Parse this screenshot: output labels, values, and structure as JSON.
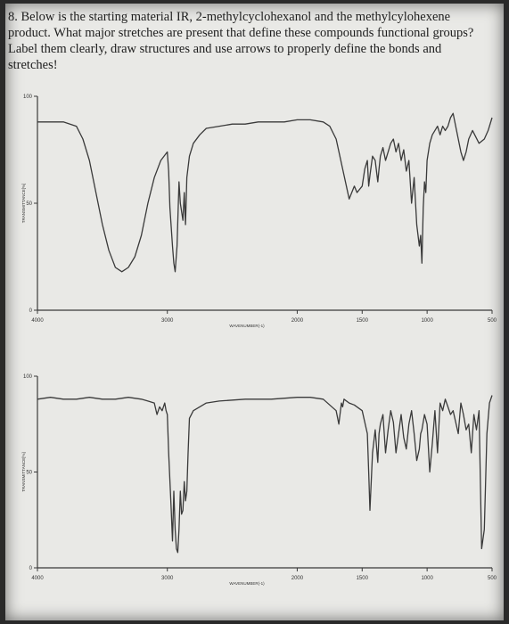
{
  "question": {
    "text": "8. Below is the starting material IR, 2-methylcyclohexanol and the methylcylohexene product. What major stretches are present that define these compounds functional groups? Label them clearly, draw structures and use arrows to properly define the bonds and stretches!"
  },
  "colors": {
    "trace": "#3a3a3a",
    "paper": "#e9e9e6",
    "text": "#1d1d1d"
  },
  "chart_data": [
    {
      "type": "line",
      "title": "",
      "xlabel": "WAVENUMBER(-1)",
      "ylabel": "TRANSMITTANCE[%]",
      "xlim": [
        4000,
        500
      ],
      "ylim": [
        0,
        100
      ],
      "x_reversed": true,
      "x_ticks": [
        4000,
        3000,
        2000,
        1500,
        1000,
        500
      ],
      "y_ticks": [
        0,
        50,
        100
      ],
      "x": [
        4000,
        3900,
        3800,
        3700,
        3650,
        3600,
        3550,
        3500,
        3450,
        3400,
        3350,
        3300,
        3250,
        3200,
        3150,
        3100,
        3050,
        3000,
        2990,
        2980,
        2960,
        2950,
        2940,
        2925,
        2910,
        2900,
        2880,
        2870,
        2860,
        2850,
        2830,
        2800,
        2750,
        2700,
        2600,
        2500,
        2400,
        2300,
        2200,
        2100,
        2000,
        1900,
        1800,
        1750,
        1700,
        1650,
        1600,
        1560,
        1540,
        1500,
        1480,
        1460,
        1450,
        1440,
        1420,
        1400,
        1380,
        1370,
        1360,
        1340,
        1320,
        1300,
        1280,
        1260,
        1240,
        1220,
        1200,
        1180,
        1160,
        1140,
        1120,
        1100,
        1080,
        1060,
        1050,
        1040,
        1030,
        1020,
        1010,
        1000,
        980,
        960,
        940,
        920,
        900,
        880,
        860,
        840,
        820,
        800,
        780,
        760,
        740,
        720,
        700,
        680,
        650,
        600,
        560,
        530,
        500
      ],
      "y": [
        88,
        88,
        88,
        86,
        80,
        70,
        55,
        40,
        28,
        20,
        18,
        20,
        25,
        35,
        50,
        62,
        70,
        74,
        65,
        48,
        30,
        22,
        18,
        30,
        60,
        50,
        42,
        55,
        40,
        62,
        72,
        78,
        82,
        85,
        86,
        87,
        87,
        88,
        88,
        88,
        89,
        89,
        88,
        86,
        80,
        66,
        52,
        58,
        55,
        58,
        66,
        70,
        58,
        63,
        72,
        70,
        60,
        66,
        72,
        76,
        70,
        74,
        78,
        80,
        74,
        78,
        70,
        75,
        65,
        70,
        50,
        62,
        40,
        30,
        35,
        22,
        48,
        60,
        55,
        70,
        78,
        82,
        84,
        86,
        82,
        86,
        84,
        86,
        90,
        92,
        86,
        80,
        74,
        70,
        74,
        80,
        84,
        78,
        80,
        84,
        90
      ]
    },
    {
      "type": "line",
      "title": "",
      "xlabel": "WAVENUMBER(-1)",
      "ylabel": "TRANSMITTANCE[%]",
      "xlim": [
        4000,
        500
      ],
      "ylim": [
        0,
        100
      ],
      "x_reversed": true,
      "x_ticks": [
        4000,
        3000,
        2000,
        1500,
        1000,
        500
      ],
      "y_ticks": [
        0,
        50,
        100
      ],
      "x": [
        4000,
        3900,
        3800,
        3700,
        3600,
        3500,
        3400,
        3300,
        3200,
        3150,
        3100,
        3080,
        3060,
        3040,
        3020,
        3010,
        3000,
        2990,
        2970,
        2960,
        2950,
        2940,
        2930,
        2920,
        2910,
        2900,
        2890,
        2880,
        2870,
        2860,
        2850,
        2840,
        2830,
        2800,
        2700,
        2600,
        2400,
        2200,
        2000,
        1900,
        1800,
        1750,
        1700,
        1680,
        1660,
        1650,
        1640,
        1600,
        1560,
        1500,
        1460,
        1450,
        1440,
        1420,
        1400,
        1380,
        1370,
        1360,
        1340,
        1320,
        1300,
        1280,
        1260,
        1240,
        1220,
        1200,
        1180,
        1160,
        1140,
        1120,
        1100,
        1080,
        1060,
        1050,
        1040,
        1020,
        1000,
        980,
        960,
        940,
        920,
        900,
        880,
        860,
        840,
        820,
        800,
        780,
        760,
        740,
        720,
        700,
        680,
        660,
        640,
        620,
        600,
        580,
        560,
        540,
        520,
        500
      ],
      "y": [
        88,
        89,
        88,
        88,
        89,
        88,
        88,
        89,
        88,
        87,
        86,
        80,
        84,
        82,
        86,
        82,
        80,
        60,
        30,
        14,
        40,
        20,
        10,
        8,
        20,
        40,
        28,
        30,
        45,
        35,
        40,
        60,
        78,
        82,
        86,
        87,
        88,
        88,
        89,
        89,
        88,
        85,
        82,
        75,
        86,
        84,
        88,
        86,
        85,
        82,
        70,
        50,
        30,
        60,
        72,
        55,
        70,
        75,
        80,
        60,
        72,
        82,
        76,
        60,
        70,
        80,
        68,
        62,
        75,
        82,
        70,
        56,
        62,
        70,
        72,
        80,
        75,
        50,
        65,
        82,
        60,
        86,
        82,
        88,
        84,
        80,
        82,
        76,
        70,
        86,
        80,
        72,
        75,
        60,
        80,
        72,
        82,
        10,
        20,
        70,
        86,
        90
      ]
    }
  ]
}
